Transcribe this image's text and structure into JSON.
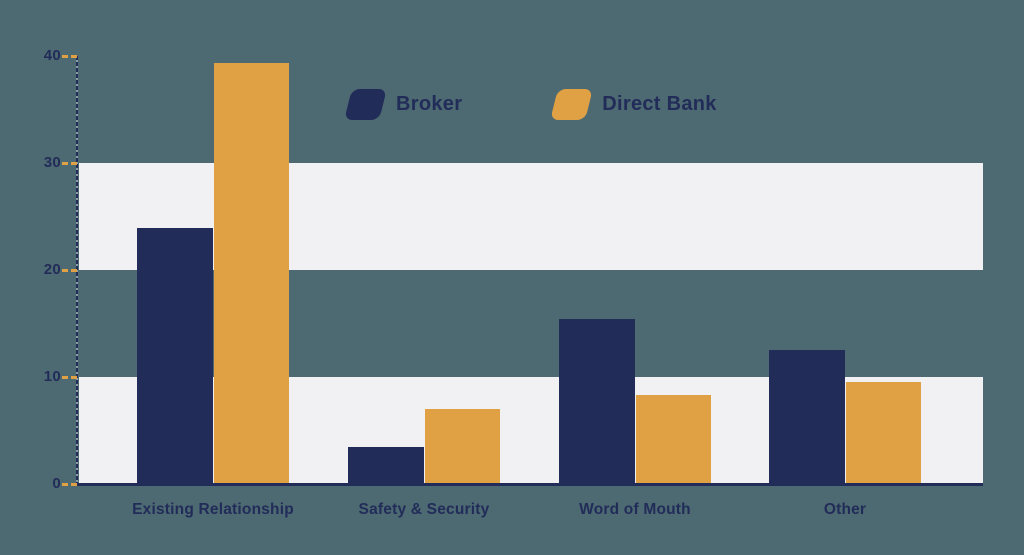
{
  "colors": {
    "background": "#4d6971",
    "navy": "#222c59",
    "orange": "#e0a044",
    "stripe_band": "#f1f1f3",
    "axis": "#222c59",
    "tick_dash": "#e0a044",
    "label_text": "#222c59"
  },
  "legend": {
    "position": "top-center",
    "items": [
      {
        "label": "Broker",
        "swatch_color": "#222c59",
        "swatch_shape": "skewed-rounded-parallelogram"
      },
      {
        "label": "Direct Bank",
        "swatch_color": "#e0a044",
        "swatch_shape": "skewed-rounded-parallelogram"
      }
    ]
  },
  "chart_data": {
    "type": "bar",
    "title": "",
    "xlabel": "",
    "ylabel": "",
    "categories": [
      "Existing Relationship",
      "Safety & Security",
      "Word of Mouth",
      "Other"
    ],
    "series": [
      {
        "name": "Broker",
        "color": "#222c59",
        "values": [
          23.9,
          3.5,
          15.4,
          12.5
        ]
      },
      {
        "name": "Direct Bank",
        "color": "#e0a044",
        "values": [
          39.3,
          7,
          8.3,
          9.5
        ]
      }
    ],
    "ylim": [
      0,
      40
    ],
    "y_ticks": [
      40,
      30,
      20,
      10,
      0
    ],
    "y_tick_style": "short dashed orange marks left of axis",
    "grid": "off",
    "grid_bands": [
      [
        20,
        30
      ],
      [
        0,
        10
      ]
    ],
    "axis_style": "navy L-shaped axis, dashed vertical line",
    "legend_position": "top-center"
  }
}
